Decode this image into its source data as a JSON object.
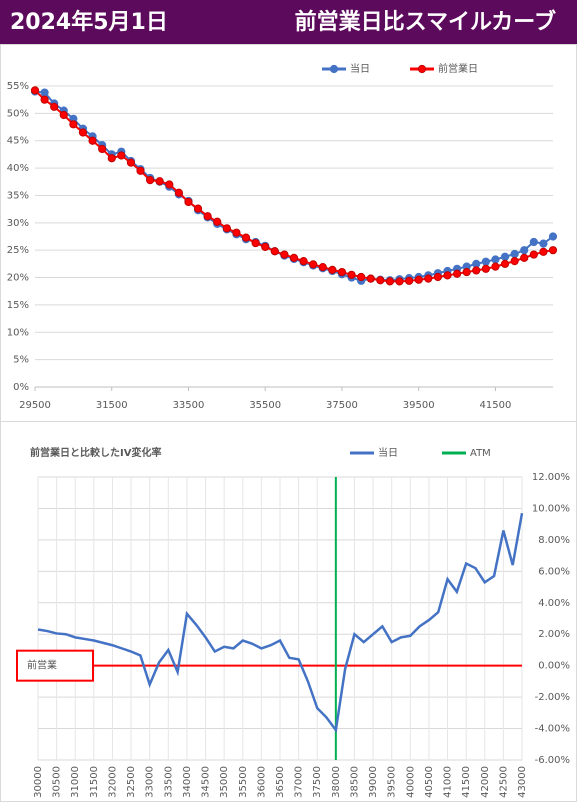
{
  "header": {
    "date": "2024年5月1日",
    "title": "前営業日比スマイルカーブ"
  },
  "chart_data": [
    {
      "type": "line",
      "x": [
        29500,
        29750,
        30000,
        30250,
        30500,
        30750,
        31000,
        31250,
        31500,
        31750,
        32000,
        32250,
        32500,
        32750,
        33000,
        33250,
        33500,
        33750,
        34000,
        34250,
        34500,
        34750,
        35000,
        35250,
        35500,
        35750,
        36000,
        36250,
        36500,
        36750,
        37000,
        37250,
        37500,
        37750,
        38000,
        38250,
        38500,
        38750,
        39000,
        39250,
        39500,
        39750,
        40000,
        40250,
        40500,
        40750,
        41000,
        41250,
        41500,
        41750,
        42000,
        42250,
        42500,
        42750,
        43000
      ],
      "series": [
        {
          "name": "当日",
          "color": "#4472c4",
          "marker_edge": "#4472c4",
          "values": [
            54.0,
            53.8,
            51.8,
            50.5,
            49.0,
            47.2,
            45.8,
            44.2,
            42.5,
            43.0,
            41.3,
            39.8,
            38.2,
            37.5,
            36.6,
            35.2,
            34.0,
            32.3,
            31.0,
            29.8,
            28.8,
            27.9,
            27.0,
            26.5,
            25.8,
            24.8,
            24.0,
            23.4,
            22.8,
            22.2,
            21.7,
            21.2,
            20.6,
            20.0,
            19.4,
            19.8,
            19.6,
            19.5,
            19.7,
            19.9,
            20.1,
            20.4,
            20.8,
            21.2,
            21.6,
            22.0,
            22.5,
            22.9,
            23.3,
            23.8,
            24.3,
            25.0,
            26.5,
            26.2,
            27.5
          ]
        },
        {
          "name": "前営業日",
          "color": "#ff0000",
          "marker_edge": "#c00000",
          "values": [
            54.2,
            52.5,
            51.2,
            49.7,
            48.0,
            46.5,
            45.0,
            43.5,
            41.8,
            42.3,
            41.0,
            39.5,
            37.8,
            37.6,
            37.0,
            35.5,
            33.8,
            32.6,
            31.2,
            30.2,
            29.0,
            28.2,
            27.3,
            26.3,
            25.6,
            24.8,
            24.2,
            23.6,
            23.0,
            22.4,
            21.9,
            21.4,
            21.0,
            20.5,
            20.1,
            19.8,
            19.5,
            19.3,
            19.3,
            19.4,
            19.6,
            19.8,
            20.1,
            20.4,
            20.7,
            21.0,
            21.3,
            21.6,
            22.0,
            22.5,
            23.0,
            23.6,
            24.2,
            24.7,
            25.0
          ]
        }
      ],
      "markers": true,
      "xlim": [
        29500,
        43000
      ],
      "xticks": [
        29500,
        31500,
        33500,
        35500,
        37500,
        39500,
        41500
      ],
      "ylim": [
        0,
        55
      ],
      "yticks": [
        {
          "value": 0,
          "label": "0%"
        },
        {
          "value": 5,
          "label": "5%"
        },
        {
          "value": 10,
          "label": "10%"
        },
        {
          "value": 15,
          "label": "15%"
        },
        {
          "value": 20,
          "label": "20%"
        },
        {
          "value": 25,
          "label": "25%"
        },
        {
          "value": 30,
          "label": "30%"
        },
        {
          "value": 35,
          "label": "35%"
        },
        {
          "value": 40,
          "label": "40%"
        },
        {
          "value": 45,
          "label": "45%"
        },
        {
          "value": 50,
          "label": "50%"
        },
        {
          "value": 55,
          "label": "55%"
        }
      ],
      "y_axis_side": "left",
      "grid": true,
      "legend": "top-right"
    },
    {
      "type": "line",
      "title": "前営業日と比較したIV変化率",
      "x": [
        30000,
        30250,
        30500,
        30750,
        31000,
        31250,
        31500,
        31750,
        32000,
        32250,
        32500,
        32750,
        33000,
        33250,
        33500,
        33750,
        34000,
        34250,
        34500,
        34750,
        35000,
        35250,
        35500,
        35750,
        36000,
        36250,
        36500,
        36750,
        37000,
        37250,
        37500,
        37750,
        38000,
        38250,
        38500,
        38750,
        39000,
        39250,
        39500,
        39750,
        40000,
        40250,
        40500,
        40750,
        41000,
        41250,
        41500,
        41750,
        42000,
        42250,
        42500,
        42750,
        43000
      ],
      "series": [
        {
          "name": "当日",
          "color": "#4472c4",
          "values": [
            2.3,
            2.2,
            2.05,
            2.0,
            1.8,
            1.7,
            1.6,
            1.45,
            1.3,
            1.1,
            0.9,
            0.65,
            -1.2,
            0.2,
            1.0,
            -0.4,
            3.3,
            2.6,
            1.8,
            0.9,
            1.2,
            1.1,
            1.6,
            1.4,
            1.1,
            1.3,
            1.6,
            0.5,
            0.4,
            -1.0,
            -2.7,
            -3.3,
            -4.1,
            -0.2,
            2.0,
            1.5,
            2.0,
            2.5,
            1.5,
            1.8,
            1.9,
            2.5,
            2.9,
            3.4,
            5.5,
            4.7,
            6.5,
            6.2,
            5.3,
            5.7,
            8.6,
            6.4,
            9.7
          ]
        }
      ],
      "vlines": [
        {
          "name": "ATM",
          "x": 38000,
          "color": "#00b050"
        }
      ],
      "hlines": [
        {
          "label": "前営業",
          "y": 0,
          "color": "#ff0000"
        }
      ],
      "markers": false,
      "xlim": [
        30000,
        43000
      ],
      "xticks": [
        30000,
        30500,
        31000,
        31500,
        32000,
        32500,
        33000,
        33500,
        34000,
        34500,
        35000,
        35500,
        36000,
        36500,
        37000,
        37500,
        38000,
        38500,
        39000,
        39500,
        40000,
        40500,
        41000,
        41500,
        42000,
        42500,
        43000
      ],
      "xtick_rotation": -90,
      "ylim": [
        -6,
        12
      ],
      "yticks": [
        {
          "value": -6,
          "label": "-6.00%"
        },
        {
          "value": -4,
          "label": "-4.00%"
        },
        {
          "value": -2,
          "label": "-2.00%"
        },
        {
          "value": 0,
          "label": "0.00%"
        },
        {
          "value": 2,
          "label": "2.00%"
        },
        {
          "value": 4,
          "label": "4.00%"
        },
        {
          "value": 6,
          "label": "6.00%"
        },
        {
          "value": 8,
          "label": "8.00%"
        },
        {
          "value": 10,
          "label": "10.00%"
        },
        {
          "value": 12,
          "label": "12.00%"
        }
      ],
      "y_axis_side": "right",
      "grid": true,
      "legend": "top-right"
    }
  ]
}
